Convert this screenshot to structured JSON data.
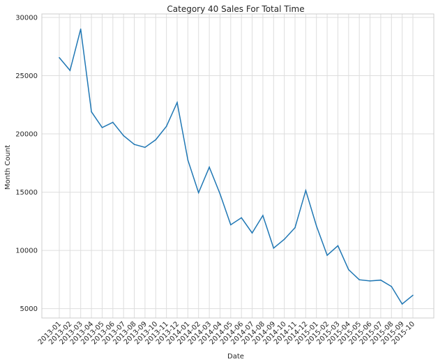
{
  "chart_data": {
    "type": "line",
    "title": "Category 40 Sales For Total Time",
    "xlabel": "Date",
    "ylabel": "Month Count",
    "ylim": [
      4200,
      30300
    ],
    "yticks": [
      5000,
      10000,
      15000,
      20000,
      25000,
      30000
    ],
    "grid": true,
    "color": "#1f77b4",
    "categories": [
      "2013-01",
      "2013-02",
      "2013-03",
      "2013-04",
      "2013-05",
      "2013-06",
      "2013-07",
      "2013-08",
      "2013-09",
      "2013-10",
      "2013-11",
      "2013-12",
      "2014-01",
      "2014-02",
      "2014-03",
      "2014-04",
      "2014-05",
      "2014-06",
      "2014-07",
      "2014-08",
      "2014-09",
      "2014-10",
      "2014-11",
      "2014-12",
      "2015-01",
      "2015-02",
      "2015-03",
      "2015-04",
      "2015-05",
      "2015-06",
      "2015-07",
      "2015-08",
      "2015-09",
      "2015-10"
    ],
    "values": [
      26550,
      25450,
      29000,
      21900,
      20550,
      21000,
      19850,
      19100,
      18850,
      19500,
      20650,
      22700,
      17750,
      14950,
      17150,
      14850,
      12200,
      12800,
      11500,
      13000,
      10200,
      10950,
      11950,
      15150,
      12100,
      9580,
      10400,
      8350,
      7480,
      7380,
      7450,
      6900,
      5400,
      6150
    ]
  }
}
